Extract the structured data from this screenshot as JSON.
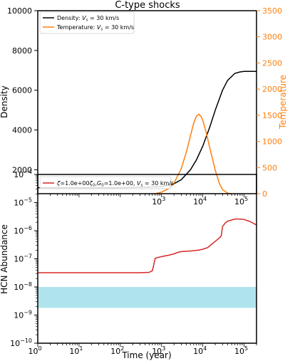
{
  "chart_data": [
    {
      "type": "line",
      "title": "C-type shocks",
      "xscale": "log",
      "xlim": [
        1,
        200000
      ],
      "ylabel": "Density",
      "ylim": [
        800,
        10000
      ],
      "yticks": [
        2000,
        4000,
        6000,
        8000,
        10000
      ],
      "y2label": "Temperature",
      "y2lim": [
        0,
        3500
      ],
      "y2ticks": [
        0,
        500,
        1000,
        1500,
        2000,
        2500,
        3000,
        3500
      ],
      "legend_position": "top-left",
      "series": [
        {
          "name": "Density: V_s = 30 km/s",
          "legend_main": "Density: ",
          "legend_math": "V",
          "legend_sub": "s",
          "legend_tail": " = 30 km/s",
          "color": "#000000",
          "axis": "left",
          "x": [
            1,
            10,
            100,
            1000,
            2000,
            3000,
            5000,
            7000,
            10000,
            15000,
            20000,
            30000,
            40000,
            60000,
            80000,
            100000,
            150000,
            200000
          ],
          "y": [
            1100,
            1100,
            1100,
            1150,
            1300,
            1500,
            2000,
            2500,
            3200,
            4200,
            5000,
            6000,
            6500,
            6850,
            6920,
            6950,
            6950,
            6950
          ]
        },
        {
          "name": "Temperature: V_s = 30 km/s",
          "legend_main": "Temperature: ",
          "legend_math": "V",
          "legend_sub": "s",
          "legend_tail": " = 30 km/s",
          "color": "#ff7f0e",
          "axis": "right",
          "x": [
            700,
            1000,
            1500,
            2000,
            3000,
            4000,
            5000,
            6000,
            7000,
            8000,
            9000,
            10000,
            12000,
            15000,
            20000,
            25000,
            30000,
            40000,
            50000
          ],
          "y": [
            0,
            30,
            100,
            200,
            480,
            800,
            1100,
            1350,
            1480,
            1520,
            1480,
            1400,
            1180,
            850,
            450,
            200,
            80,
            10,
            0
          ]
        }
      ]
    },
    {
      "type": "line",
      "xlabel": "Time (year)",
      "xscale": "log",
      "xlim": [
        1,
        200000
      ],
      "ylabel": "HCN Abundance",
      "yscale": "log",
      "ylim": [
        1e-10,
        0.0001
      ],
      "band": {
        "y_low": 1.8e-09,
        "y_high": 1e-08,
        "color": "#b0e4ec"
      },
      "legend_position": "top-left",
      "series": [
        {
          "name": "ζ=1.0e+00ζ0,G0=1.0e+00, V_s = 30 km/s",
          "color": "#d62728",
          "x": [
            1,
            10,
            100,
            300,
            500,
            600,
            700,
            1000,
            1500,
            2000,
            2500,
            3000,
            5000,
            8000,
            10000,
            13000,
            16000,
            20000,
            25000,
            28000,
            30000,
            35000,
            40000,
            50000,
            60000,
            80000,
            100000,
            130000,
            160000,
            200000
          ],
          "y": [
            3.2e-08,
            3.2e-08,
            3.2e-08,
            3.2e-08,
            3.3e-08,
            3.8e-08,
            1.05e-07,
            1.2e-07,
            1.35e-07,
            1.5e-07,
            1.7e-07,
            1.8e-07,
            1.9e-07,
            2.05e-07,
            2.2e-07,
            2.5e-07,
            3.2e-07,
            4.2e-07,
            5.5e-07,
            6.5e-07,
            1.4e-06,
            1.9e-06,
            2.2e-06,
            2.4e-06,
            2.6e-06,
            2.6e-06,
            2.5e-06,
            2.2e-06,
            1.9e-06,
            1.6e-06
          ]
        }
      ]
    }
  ],
  "legend2": {
    "zeta": "ζ",
    "zeta_value": "=1.0e+00",
    "zeta0_main": "ζ",
    "zeta0_sub": "0",
    "comma1": ",",
    "g_main": "G",
    "g_sub": "0",
    "g_value": "=1.0e+00, ",
    "v_main": "V",
    "v_sub": "s",
    "v_tail": " = 30 km/s"
  },
  "tick_labels": {
    "bottom_x": [
      "10^0",
      "10^1",
      "10^2",
      "10^3",
      "10^4",
      "10^5"
    ],
    "top_x": [
      "10^3",
      "10^4",
      "10^5"
    ],
    "bottom_y": [
      "10^-10",
      "10^-9",
      "10^-8",
      "10^-7",
      "10^-6",
      "10^-5",
      "10^-4"
    ]
  }
}
